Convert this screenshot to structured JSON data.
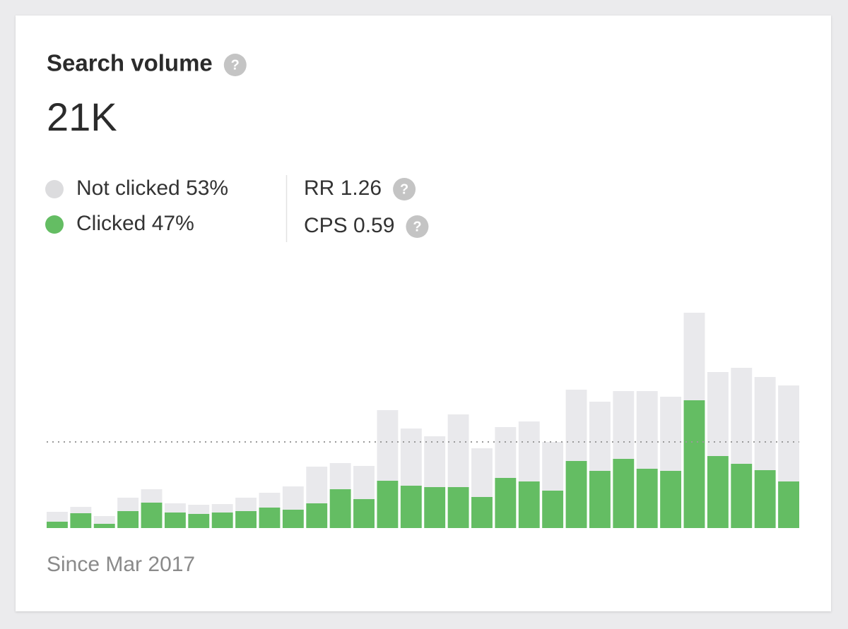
{
  "chart_data": {
    "type": "bar",
    "stacked": true,
    "title": "Search volume",
    "help_icon": "?",
    "total": "21K",
    "categories": [
      null,
      null,
      null,
      null,
      null,
      null,
      null,
      null,
      null,
      null,
      null,
      null,
      null,
      null,
      null,
      null,
      null,
      null,
      null,
      null,
      null,
      null,
      null,
      null,
      null,
      null,
      null,
      null,
      null,
      null,
      null,
      null
    ],
    "series": [
      {
        "name": "Not clicked",
        "share": "53%",
        "color": "#e9e9ec",
        "legend_color": "#dcdcde",
        "values": [
          14,
          9,
          11,
          19,
          19,
          13,
          13,
          12,
          19,
          21,
          33,
          52,
          37,
          47,
          100,
          81,
          72,
          103,
          69,
          72,
          85,
          69,
          101,
          98,
          96,
          110,
          105,
          124,
          119,
          136,
          132,
          136
        ]
      },
      {
        "name": "Clicked",
        "share": "47%",
        "color": "#64bd63",
        "legend_color": "#64bd63",
        "values": [
          9,
          21,
          6,
          24,
          36,
          22,
          20,
          22,
          24,
          29,
          26,
          35,
          55,
          41,
          67,
          60,
          58,
          58,
          44,
          71,
          66,
          53,
          95,
          81,
          98,
          84,
          81,
          181,
          102,
          91,
          82,
          66
        ]
      }
    ],
    "stack_order": [
      1,
      0
    ],
    "metrics": [
      {
        "label": "RR",
        "value": 1.26
      },
      {
        "label": "CPS",
        "value": 0.59
      }
    ],
    "reference_line": 122,
    "ylim": [
      0,
      320
    ],
    "footnote": "Since Mar 2017"
  }
}
